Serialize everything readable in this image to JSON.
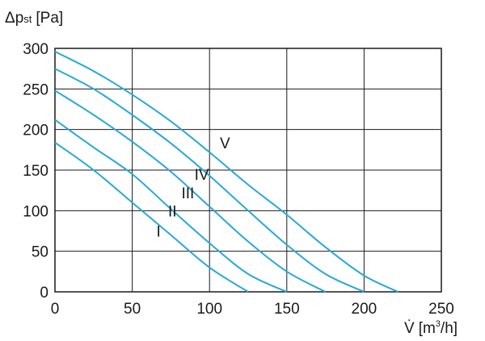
{
  "chart_data": {
    "type": "line",
    "title": "",
    "ylabel": {
      "delta": "Δ",
      "p": "p",
      "subscript": "st",
      "unit": "[Pa]"
    },
    "xlabel": {
      "v": "V̇",
      "unit_pre": "[m",
      "unit_sup": "3",
      "unit_post": "/h]"
    },
    "xlim": [
      0,
      250
    ],
    "ylim": [
      0,
      300
    ],
    "xticks": [
      0,
      50,
      100,
      150,
      200,
      250
    ],
    "yticks": [
      0,
      50,
      100,
      150,
      200,
      250,
      300
    ],
    "grid": true,
    "line_color": "#27a9d9",
    "series": [
      {
        "name": "I",
        "x": [
          0,
          25,
          50,
          75,
          100,
          125
        ],
        "y": [
          184,
          150,
          110,
          70,
          30,
          0
        ],
        "label_at": [
          67,
          68
        ]
      },
      {
        "name": "II",
        "x": [
          0,
          25,
          50,
          75,
          100,
          125,
          150
        ],
        "y": [
          212,
          178,
          145,
          102,
          60,
          22,
          0
        ],
        "label_at": [
          76,
          93
        ]
      },
      {
        "name": "III",
        "x": [
          0,
          25,
          50,
          75,
          100,
          125,
          150,
          175
        ],
        "y": [
          248,
          218,
          185,
          148,
          105,
          62,
          25,
          0
        ],
        "label_at": [
          86,
          115
        ]
      },
      {
        "name": "IV",
        "x": [
          0,
          25,
          50,
          75,
          100,
          125,
          150,
          175,
          200
        ],
        "y": [
          275,
          250,
          218,
          183,
          143,
          100,
          58,
          22,
          0
        ],
        "label_at": [
          95,
          138
        ]
      },
      {
        "name": "V",
        "x": [
          0,
          25,
          50,
          75,
          100,
          125,
          150,
          175,
          200,
          222
        ],
        "y": [
          296,
          272,
          243,
          210,
          172,
          132,
          95,
          55,
          20,
          0
        ],
        "label_at": [
          110,
          177
        ]
      }
    ]
  }
}
